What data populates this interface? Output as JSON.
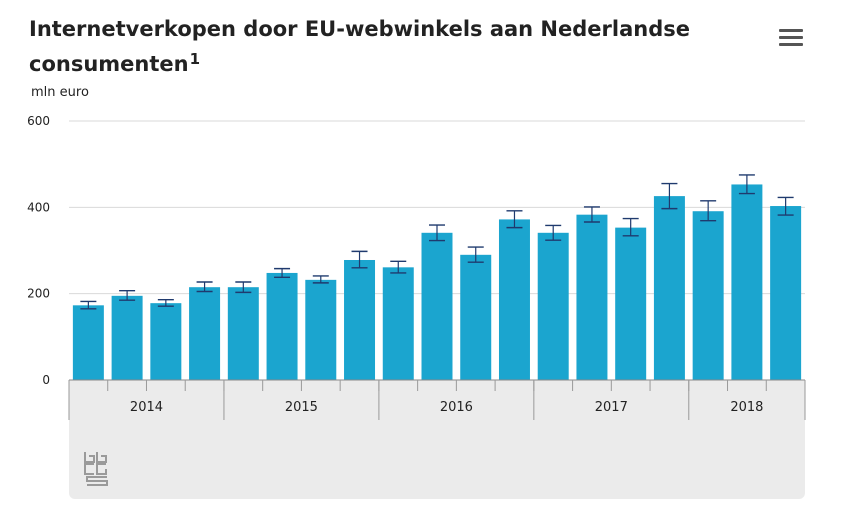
{
  "header": {
    "title": "Internetverkopen door EU-webwinkels aan Nederlandse consumenten",
    "footnote_marker": "1",
    "menu_icon": "hamburger-menu-icon"
  },
  "branding": {
    "logo_icon": "cbs-logo-icon",
    "logo_text": "cbs"
  },
  "colors": {
    "bar": "#1ba5cf",
    "error_bar": "#1f3a6e",
    "grid": "#d9d9d9",
    "axis_band": "#ebebeb"
  },
  "chart_data": {
    "type": "bar",
    "title": "Internetverkopen door EU-webwinkels aan Nederlandse consumenten",
    "ylabel": "mln euro",
    "xlabel": "",
    "ylim": [
      0,
      600
    ],
    "yticks": [
      0,
      200,
      400,
      600
    ],
    "grid": true,
    "legend": "none",
    "categories": [
      "2014",
      "2014",
      "2014",
      "2014",
      "2015",
      "2015",
      "2015",
      "2015",
      "2016",
      "2016",
      "2016",
      "2016",
      "2017",
      "2017",
      "2017",
      "2017",
      "2018",
      "2018",
      "2018"
    ],
    "year_groups": [
      {
        "label": "2014",
        "count": 4
      },
      {
        "label": "2015",
        "count": 4
      },
      {
        "label": "2016",
        "count": 4
      },
      {
        "label": "2017",
        "count": 4
      },
      {
        "label": "2018",
        "count": 3
      }
    ],
    "values": [
      173,
      195,
      178,
      215,
      215,
      248,
      232,
      278,
      261,
      341,
      290,
      372,
      341,
      383,
      353,
      426,
      391,
      453,
      403
    ],
    "error_low": [
      165,
      185,
      171,
      205,
      203,
      238,
      225,
      260,
      248,
      323,
      273,
      353,
      324,
      366,
      334,
      397,
      369,
      432,
      382
    ],
    "error_high": [
      182,
      207,
      186,
      227,
      227,
      258,
      241,
      298,
      275,
      359,
      308,
      392,
      358,
      401,
      374,
      455,
      415,
      475,
      423
    ]
  }
}
